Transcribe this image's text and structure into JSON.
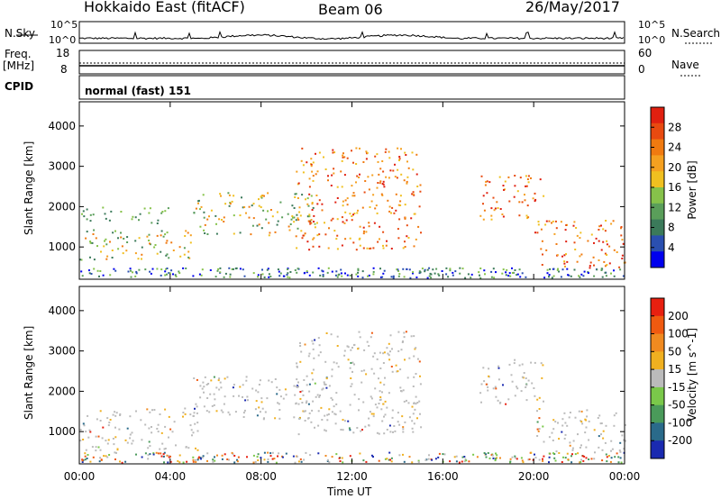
{
  "header": {
    "left_title": "Hokkaido East (fitACF)",
    "center_title": "Beam 06",
    "right_title": "26/May/2017"
  },
  "noise_panel": {
    "left_label": "N.Sky",
    "left_ticks": [
      "10^5",
      "10^0"
    ],
    "right_label": "N.Search",
    "right_ticks": [
      "10^5",
      "10^0"
    ]
  },
  "freq_panel": {
    "left_label_1": "Freq.",
    "left_label_2": "[MHz]",
    "left_ticks": [
      "18",
      "8"
    ],
    "right_label": "Nave",
    "right_ticks": [
      "60",
      "0"
    ]
  },
  "cpid_panel": {
    "label": "CPID",
    "value": "normal (fast) 151"
  },
  "chart_data": [
    {
      "type": "heatmap",
      "name": "power",
      "ylabel": "Slant Range [km]",
      "ylim": [
        200,
        4600
      ],
      "yticks": [
        "4000",
        "3000",
        "2000",
        "1000"
      ],
      "colorbar_label": "Power [dB]",
      "colorbar_ticks": [
        "28",
        "24",
        "20",
        "16",
        "12",
        "8",
        "4"
      ],
      "colorbar_colors": [
        "#0000ee",
        "#2a4fb0",
        "#3b7a5a",
        "#5a9e5a",
        "#86c24a",
        "#f0c020",
        "#f5a020",
        "#f07a10",
        "#e84a10",
        "#e02010"
      ],
      "echo_regions": [
        {
          "t": [
            0.0,
            5.2
          ],
          "range": [
            700,
            1500
          ],
          "level": "medium"
        },
        {
          "t": [
            0.0,
            4.0
          ],
          "range": [
            1600,
            2000
          ],
          "level": "low"
        },
        {
          "t": [
            5.0,
            10.5
          ],
          "range": [
            1300,
            2400
          ],
          "level": "medium"
        },
        {
          "t": [
            9.5,
            15.0
          ],
          "range": [
            950,
            3500
          ],
          "level": "high"
        },
        {
          "t": [
            17.6,
            20.4
          ],
          "range": [
            1700,
            2800
          ],
          "level": "high"
        },
        {
          "t": [
            20.0,
            24.0
          ],
          "range": [
            500,
            1700
          ],
          "level": "high"
        }
      ]
    },
    {
      "type": "heatmap",
      "name": "velocity",
      "ylabel": "Slant Range [km]",
      "ylim": [
        200,
        4600
      ],
      "yticks": [
        "4000",
        "3000",
        "2000",
        "1000"
      ],
      "colorbar_label": "Velocity [m s^-1]",
      "colorbar_ticks": [
        "200",
        "100",
        "50",
        "15",
        "-15",
        "-50",
        "-100",
        "-200"
      ],
      "colorbar_colors": [
        "#1a2ab0",
        "#2a6a8a",
        "#4a9a5a",
        "#7ac84a",
        "#bbbbbb",
        "#f0b020",
        "#f08a20",
        "#f05a10",
        "#e82010"
      ],
      "echo_regions": [
        {
          "t": [
            0.0,
            5.2
          ],
          "range": [
            500,
            1600
          ],
          "level": "low"
        },
        {
          "t": [
            5.0,
            10.5
          ],
          "range": [
            1300,
            2400
          ],
          "level": "low"
        },
        {
          "t": [
            9.5,
            15.0
          ],
          "range": [
            950,
            3500
          ],
          "level": "low"
        },
        {
          "t": [
            17.6,
            20.4
          ],
          "range": [
            1700,
            2800
          ],
          "level": "low"
        },
        {
          "t": [
            20.0,
            24.0
          ],
          "range": [
            500,
            1600
          ],
          "level": "low"
        }
      ]
    }
  ],
  "x_axis": {
    "ticks": [
      "00:00",
      "04:00",
      "08:00",
      "12:00",
      "16:00",
      "20:00",
      "00:00"
    ],
    "xlim": [
      0,
      24
    ],
    "label": "Time UT"
  }
}
